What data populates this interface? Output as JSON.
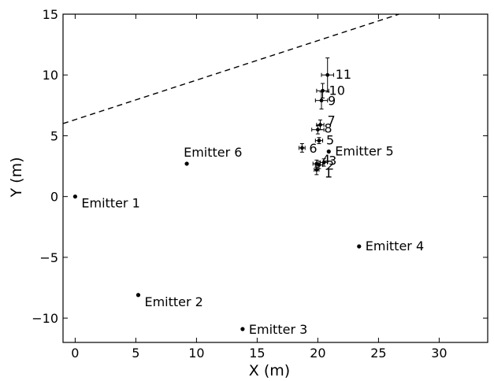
{
  "chart_data": {
    "type": "scatter",
    "xlabel": "X (m)",
    "ylabel": "Y (m)",
    "xlim": [
      -1,
      34
    ],
    "ylim": [
      -12,
      15
    ],
    "xticks": [
      0,
      5,
      10,
      15,
      20,
      25,
      30
    ],
    "yticks": [
      -10,
      -5,
      0,
      5,
      10,
      15
    ],
    "grid": false,
    "emitters": [
      {
        "label": "Emitter 1",
        "x": 0.0,
        "y": 0.0
      },
      {
        "label": "Emitter 2",
        "x": 5.2,
        "y": -8.1
      },
      {
        "label": "Emitter 3",
        "x": 13.8,
        "y": -10.9
      },
      {
        "label": "Emitter 4",
        "x": 23.4,
        "y": -4.1
      },
      {
        "label": "Emitter 5",
        "x": 20.9,
        "y": 3.7
      },
      {
        "label": "Emitter 6",
        "x": 9.2,
        "y": 2.7
      }
    ],
    "measurements": [
      {
        "label": "1",
        "x": 19.9,
        "y": 2.2,
        "xerr": 0.2,
        "yerr": 0.4
      },
      {
        "label": "2",
        "x": 20.1,
        "y": 2.6,
        "xerr": 0.3,
        "yerr": 0.3
      },
      {
        "label": "3",
        "x": 20.5,
        "y": 2.8,
        "xerr": 0.3,
        "yerr": 0.3
      },
      {
        "label": "4",
        "x": 19.9,
        "y": 2.7,
        "xerr": 0.3,
        "yerr": 0.3
      },
      {
        "label": "5",
        "x": 20.1,
        "y": 4.6,
        "xerr": 0.3,
        "yerr": 0.25
      },
      {
        "label": "6",
        "x": 18.7,
        "y": 4.0,
        "xerr": 0.25,
        "yerr": 0.35
      },
      {
        "label": "7",
        "x": 20.2,
        "y": 5.9,
        "xerr": 0.3,
        "yerr": 0.4
      },
      {
        "label": "8",
        "x": 20.0,
        "y": 5.5,
        "xerr": 0.5,
        "yerr": 0.35
      },
      {
        "label": "9",
        "x": 20.3,
        "y": 7.9,
        "xerr": 0.5,
        "yerr": 0.7
      },
      {
        "label": "10",
        "x": 20.4,
        "y": 8.7,
        "xerr": 0.5,
        "yerr": 0.6
      },
      {
        "label": "11",
        "x": 20.8,
        "y": 10.0,
        "xerr": 0.5,
        "yerr": 1.4
      }
    ],
    "line": {
      "style": "dashed",
      "points": [
        [
          -1,
          6.0
        ],
        [
          26.7,
          15.0
        ]
      ]
    }
  }
}
